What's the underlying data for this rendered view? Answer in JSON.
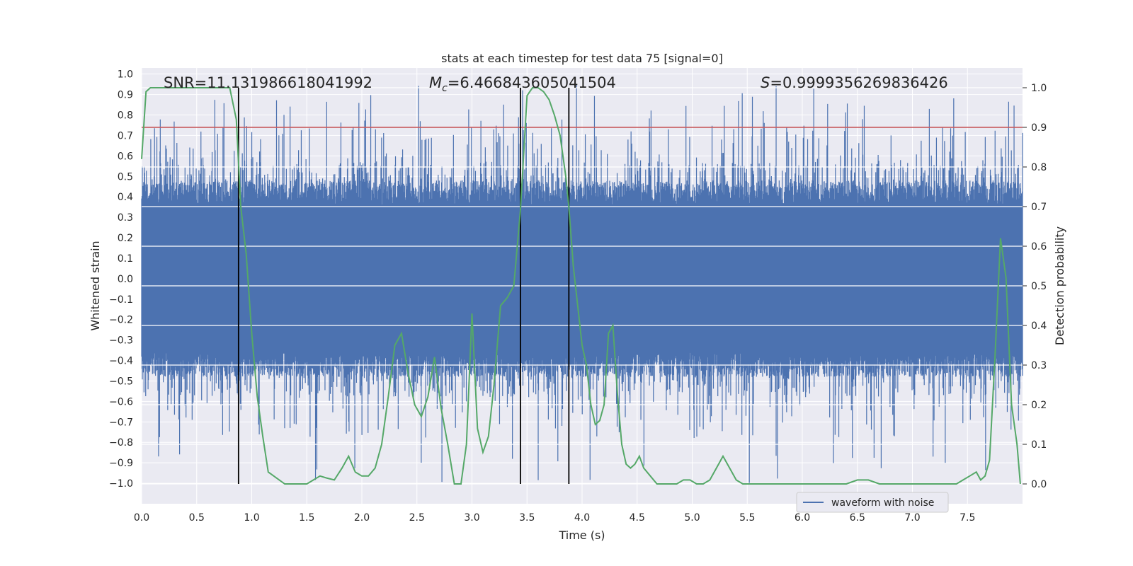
{
  "chart_data": {
    "type": "line",
    "title": "stats at each timestep for test data 75 [signal=0]",
    "xlabel": "Time (s)",
    "ylabel": "Whitened strain",
    "y2label": "Detection probability",
    "xlim": [
      0.0,
      8.0
    ],
    "ylim": [
      -1.1,
      1.03
    ],
    "y2lim": [
      -0.05,
      1.05
    ],
    "xticks": [
      "0.0",
      "0.5",
      "1.0",
      "1.5",
      "2.0",
      "2.5",
      "3.0",
      "3.5",
      "4.0",
      "4.5",
      "5.0",
      "5.5",
      "6.0",
      "6.5",
      "7.0",
      "7.5"
    ],
    "yticks": [
      "1.0",
      "0.9",
      "0.8",
      "0.7",
      "0.6",
      "0.5",
      "0.4",
      "0.3",
      "0.2",
      "0.1",
      "0.0",
      "-0.1",
      "-0.2",
      "-0.3",
      "-0.4",
      "-0.5",
      "-0.6",
      "-0.7",
      "-0.8",
      "-0.9",
      "-1.0"
    ],
    "y2ticks": [
      "1.0",
      "0.9",
      "0.8",
      "0.7",
      "0.6",
      "0.5",
      "0.4",
      "0.3",
      "0.2",
      "0.1",
      "0.0"
    ],
    "stats": {
      "snr_prefix": "SNR=",
      "snr_value": "11.131986618041992",
      "mc_symbol": "M",
      "mc_sub": "c",
      "mc_value": "=6.466843605041504",
      "s_symbol": "S",
      "s_value": "=0.9999356269836426"
    },
    "threshold": 0.9,
    "vertical_lines": [
      0.88,
      3.44,
      3.88
    ],
    "legend": {
      "label": "waveform with noise",
      "placement": "lower-right"
    },
    "series": [
      {
        "name": "waveform with noise",
        "style": "dense noise ±0.45, peaks to ±1.0",
        "color": "#4c72b0"
      }
    ],
    "probability": {
      "color": "#55a868",
      "x": [
        0.0,
        0.04,
        0.08,
        0.12,
        0.16,
        0.2,
        0.28,
        0.4,
        0.55,
        0.7,
        0.8,
        0.86,
        0.9,
        0.95,
        1.0,
        1.05,
        1.1,
        1.15,
        1.2,
        1.3,
        1.4,
        1.5,
        1.56,
        1.62,
        1.68,
        1.75,
        1.82,
        1.88,
        1.94,
        2.0,
        2.06,
        2.12,
        2.18,
        2.24,
        2.3,
        2.36,
        2.42,
        2.48,
        2.54,
        2.6,
        2.66,
        2.72,
        2.78,
        2.84,
        2.9,
        2.95,
        3.0,
        3.05,
        3.1,
        3.15,
        3.2,
        3.26,
        3.32,
        3.38,
        3.44,
        3.5,
        3.55,
        3.6,
        3.65,
        3.7,
        3.75,
        3.8,
        3.85,
        3.88,
        3.92,
        3.96,
        4.0,
        4.04,
        4.08,
        4.12,
        4.16,
        4.2,
        4.24,
        4.28,
        4.32,
        4.36,
        4.4,
        4.44,
        4.48,
        4.52,
        4.56,
        4.62,
        4.68,
        4.74,
        4.8,
        4.86,
        4.92,
        4.98,
        5.04,
        5.1,
        5.16,
        5.22,
        5.28,
        5.34,
        5.4,
        5.46,
        5.52,
        5.6,
        5.7,
        5.8,
        5.9,
        6.0,
        6.2,
        6.4,
        6.5,
        6.6,
        6.7,
        6.8,
        6.9,
        7.0,
        7.2,
        7.4,
        7.46,
        7.52,
        7.58,
        7.62,
        7.66,
        7.7,
        7.75,
        7.8,
        7.85,
        7.9,
        7.95,
        7.98
      ],
      "y": [
        0.82,
        0.99,
        1.0,
        1.0,
        1.0,
        1.0,
        1.0,
        1.0,
        1.0,
        1.0,
        1.0,
        0.92,
        0.7,
        0.58,
        0.38,
        0.22,
        0.12,
        0.03,
        0.02,
        0.0,
        0.0,
        0.0,
        0.01,
        0.02,
        0.015,
        0.01,
        0.04,
        0.07,
        0.03,
        0.02,
        0.02,
        0.04,
        0.1,
        0.22,
        0.35,
        0.38,
        0.28,
        0.2,
        0.17,
        0.22,
        0.32,
        0.19,
        0.1,
        0.0,
        0.0,
        0.1,
        0.43,
        0.14,
        0.08,
        0.12,
        0.25,
        0.45,
        0.47,
        0.5,
        0.69,
        0.98,
        1.0,
        1.0,
        0.99,
        0.97,
        0.93,
        0.88,
        0.78,
        0.7,
        0.55,
        0.45,
        0.35,
        0.3,
        0.2,
        0.15,
        0.16,
        0.2,
        0.38,
        0.4,
        0.23,
        0.1,
        0.05,
        0.04,
        0.05,
        0.07,
        0.04,
        0.02,
        0.0,
        0.0,
        0.0,
        0.0,
        0.01,
        0.01,
        0.0,
        0.0,
        0.01,
        0.04,
        0.07,
        0.04,
        0.01,
        0.0,
        0.0,
        0.0,
        0.0,
        0.0,
        0.0,
        0.0,
        0.0,
        0.0,
        0.01,
        0.01,
        0.0,
        0.0,
        0.0,
        0.0,
        0.0,
        0.0,
        0.01,
        0.02,
        0.03,
        0.01,
        0.02,
        0.06,
        0.32,
        0.62,
        0.52,
        0.2,
        0.1,
        0.0
      ]
    }
  }
}
